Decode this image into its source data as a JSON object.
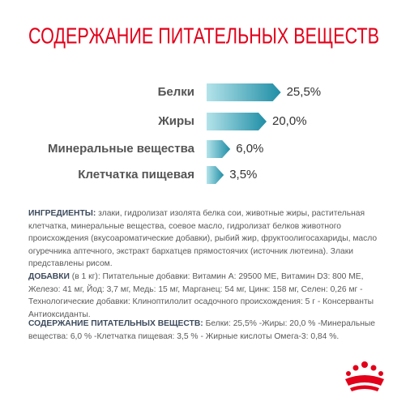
{
  "chart_data": {
    "type": "bar",
    "orientation": "horizontal",
    "title": "СОДЕРЖАНИЕ ПИТАТЕЛЬНЫХ ВЕЩЕСТВ",
    "categories": [
      "Белки",
      "Жиры",
      "Минеральные вещества",
      "Клетчатка пищевая"
    ],
    "values": [
      25.5,
      20.0,
      6.0,
      3.5
    ],
    "value_labels": [
      "25,5%",
      "20,0%",
      "6,0%",
      "3,5%"
    ],
    "color": "#1f8ea6"
  },
  "sections": [
    {
      "heading": "ИНГРЕДИЕНТЫ:",
      "text": " злаки, гидролизат изолята белка сои, животные жиры, растительная клетчатка, минеральные вещества, соевое масло, гидролизат белков животного происхождения (вкусоароматические добавки), рыбий жир, фруктоолигосахариды, масло огуречника аптечного, экстракт бархатцев прямостоячих (источник лютеина). Злаки представлены рисом."
    },
    {
      "heading": "ДОБАВКИ",
      "text": " (в 1 кг): Питательные добавки: Витамин А: 29500 МЕ, Витамин D3: 800 МЕ, Железо: 41 мг, Йод: 3,7 мг, Медь: 15 мг, Марганец: 54 мг, Цинк: 158 мг, Селен: 0,26 мг - Технологические добавки: Клиноптилолит осадочного происхождения: 5 г - Консерванты Антиоксиданты."
    },
    {
      "heading": "СОДЕРЖАНИЕ ПИТАТЕЛЬНЫХ ВЕЩЕСТВ:",
      "text": " Белки: 25,5% -Жиры: 20,0 % -Минеральные вещества: 6,0 % -Клетчатка пищевая: 3,5 % - Жирные кислоты Омега-3: 0,84 %."
    }
  ]
}
